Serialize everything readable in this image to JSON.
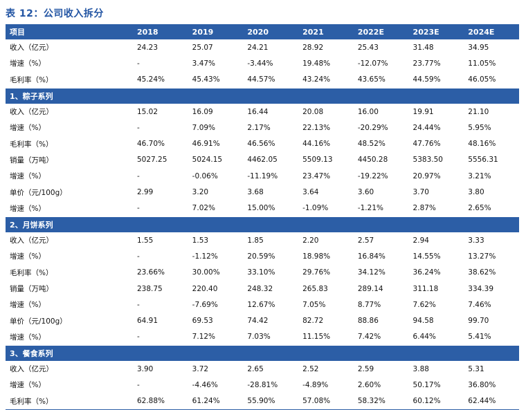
{
  "title": "表 12：公司收入拆分",
  "header": [
    "项目",
    "2018",
    "2019",
    "2020",
    "2021",
    "2022E",
    "2023E",
    "2024E"
  ],
  "total_rows": [
    {
      "label": "收入（亿元）",
      "values": [
        "24.23",
        "25.07",
        "24.21",
        "28.92",
        "25.43",
        "31.48",
        "34.95"
      ]
    },
    {
      "label": "增速（%）",
      "values": [
        "-",
        "3.47%",
        "-3.44%",
        "19.48%",
        "-12.07%",
        "23.77%",
        "11.05%"
      ]
    },
    {
      "label": "毛利率（%）",
      "values": [
        "45.24%",
        "45.43%",
        "44.57%",
        "43.24%",
        "43.65%",
        "44.59%",
        "46.05%"
      ]
    }
  ],
  "segments": [
    {
      "title": "1、粽子系列",
      "rows": [
        {
          "label": "收入（亿元）",
          "values": [
            "15.02",
            "16.09",
            "16.44",
            "20.08",
            "16.00",
            "19.91",
            "21.10"
          ]
        },
        {
          "label": "增速（%）",
          "values": [
            "-",
            "7.09%",
            "2.17%",
            "22.13%",
            "-20.29%",
            "24.44%",
            "5.95%"
          ]
        },
        {
          "label": "毛利率（%）",
          "values": [
            "46.70%",
            "46.91%",
            "46.56%",
            "44.16%",
            "48.52%",
            "47.76%",
            "48.16%"
          ]
        },
        {
          "label": "销量（万吨）",
          "values": [
            "5027.25",
            "5024.15",
            "4462.05",
            "5509.13",
            "4450.28",
            "5383.50",
            "5556.31"
          ]
        },
        {
          "label": "增速（%）",
          "values": [
            "-",
            "-0.06%",
            "-11.19%",
            "23.47%",
            "-19.22%",
            "20.97%",
            "3.21%"
          ]
        },
        {
          "label": "单价（元/100g）",
          "values": [
            "2.99",
            "3.20",
            "3.68",
            "3.64",
            "3.60",
            "3.70",
            "3.80"
          ]
        },
        {
          "label": "增速（%）",
          "values": [
            "-",
            "7.02%",
            "15.00%",
            "-1.09%",
            "-1.21%",
            "2.87%",
            "2.65%"
          ]
        }
      ]
    },
    {
      "title": "2、月饼系列",
      "rows": [
        {
          "label": "收入（亿元）",
          "values": [
            "1.55",
            "1.53",
            "1.85",
            "2.20",
            "2.57",
            "2.94",
            "3.33"
          ]
        },
        {
          "label": "增速（%）",
          "values": [
            "-",
            "-1.12%",
            "20.59%",
            "18.98%",
            "16.84%",
            "14.55%",
            "13.27%"
          ]
        },
        {
          "label": "毛利率（%）",
          "values": [
            "23.66%",
            "30.00%",
            "33.10%",
            "29.76%",
            "34.12%",
            "36.24%",
            "38.62%"
          ]
        },
        {
          "label": "销量（万吨）",
          "values": [
            "238.75",
            "220.40",
            "248.32",
            "265.83",
            "289.14",
            "311.18",
            "334.39"
          ]
        },
        {
          "label": "增速（%）",
          "values": [
            "-",
            "-7.69%",
            "12.67%",
            "7.05%",
            "8.77%",
            "7.62%",
            "7.46%"
          ]
        },
        {
          "label": "单价（元/100g）",
          "values": [
            "64.91",
            "69.53",
            "74.42",
            "82.72",
            "88.86",
            "94.58",
            "99.70"
          ]
        },
        {
          "label": "增速（%）",
          "values": [
            "-",
            "7.12%",
            "7.03%",
            "11.15%",
            "7.42%",
            "6.44%",
            "5.41%"
          ]
        }
      ]
    },
    {
      "title": "3、餐食系列",
      "rows": [
        {
          "label": "收入（亿元）",
          "values": [
            "3.90",
            "3.72",
            "2.65",
            "2.52",
            "2.59",
            "3.88",
            "5.31"
          ]
        },
        {
          "label": "增速（%）",
          "values": [
            "-",
            "-4.46%",
            "-28.81%",
            "-4.89%",
            "2.60%",
            "50.17%",
            "36.80%"
          ]
        },
        {
          "label": "毛利率（%）",
          "values": [
            "62.88%",
            "61.24%",
            "55.90%",
            "57.08%",
            "58.32%",
            "60.12%",
            "62.44%"
          ]
        }
      ]
    }
  ],
  "colors": {
    "accent": "#2c5ea6",
    "title": "#2456a4"
  }
}
